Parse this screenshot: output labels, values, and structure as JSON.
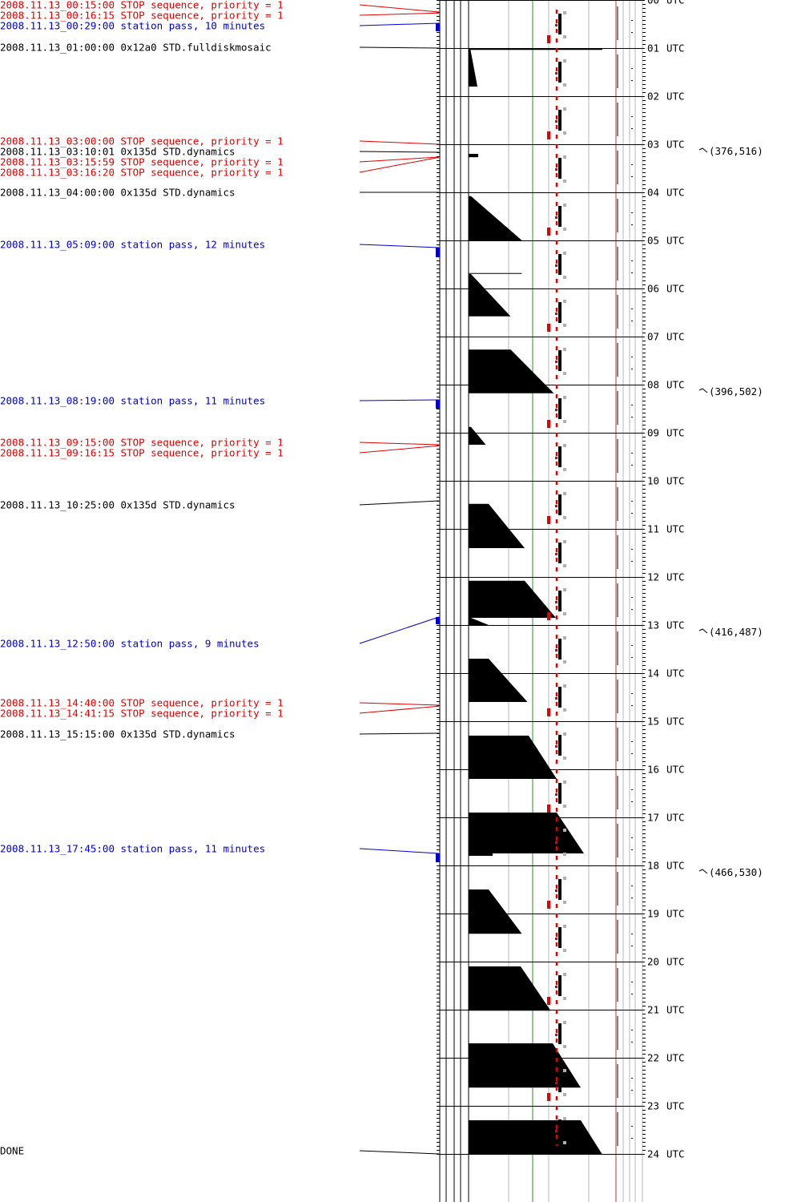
{
  "chart_data": {
    "type": "timeline",
    "title": "",
    "x_unit": "",
    "y_unit": "UTC hour",
    "hour_range": [
      0,
      24
    ],
    "hour_suffix": "UTC",
    "hour_ticks": [
      "00",
      "01",
      "02",
      "03",
      "04",
      "05",
      "06",
      "07",
      "08",
      "09",
      "10",
      "11",
      "12",
      "13",
      "14",
      "15",
      "16",
      "17",
      "18",
      "19",
      "20",
      "21",
      "22",
      "23",
      "24"
    ],
    "colors": {
      "stop_sequence": "#e00000",
      "station_pass": "#0000cc",
      "command": "#000000",
      "done": "#000000",
      "grid_gray": "#b8b8b8",
      "grid_green": "#2e8b2e",
      "limit_red": "#c03030",
      "fill": "#000000",
      "gray_mark": "#b0b0b0"
    },
    "events": [
      {
        "hour": 0.25,
        "type": "stop_sequence",
        "label": "2008.11.13_00:15:00 STOP sequence, priority = 1"
      },
      {
        "hour": 0.2708,
        "type": "stop_sequence",
        "label": "2008.11.13_00:16:15 STOP sequence, priority = 1"
      },
      {
        "hour": 0.4833,
        "type": "station_pass",
        "label": "2008.11.13_00:29:00 station pass, 10 minutes",
        "duration_min": 10
      },
      {
        "hour": 1.0,
        "type": "command",
        "label": "2008.11.13_01:00:00 0x12a0 STD.fulldiskmosaic"
      },
      {
        "hour": 3.0,
        "type": "stop_sequence",
        "label": "2008.11.13_03:00:00 STOP sequence, priority = 1"
      },
      {
        "hour": 3.1669,
        "type": "command",
        "label": "2008.11.13_03:10:01 0x135d STD.dynamics"
      },
      {
        "hour": 3.2664,
        "type": "stop_sequence",
        "label": "2008.11.13_03:15:59 STOP sequence, priority = 1"
      },
      {
        "hour": 3.2722,
        "type": "stop_sequence",
        "label": "2008.11.13_03:16:20 STOP sequence, priority = 1"
      },
      {
        "hour": 4.0,
        "type": "command",
        "label": "2008.11.13_04:00:00 0x135d STD.dynamics"
      },
      {
        "hour": 5.15,
        "type": "station_pass",
        "label": "2008.11.13_05:09:00 station pass, 12 minutes",
        "duration_min": 12
      },
      {
        "hour": 8.3167,
        "type": "station_pass",
        "label": "2008.11.13_08:19:00 station pass, 11 minutes",
        "duration_min": 11
      },
      {
        "hour": 9.25,
        "type": "stop_sequence",
        "label": "2008.11.13_09:15:00 STOP sequence, priority = 1"
      },
      {
        "hour": 9.2708,
        "type": "stop_sequence",
        "label": "2008.11.13_09:16:15 STOP sequence, priority = 1"
      },
      {
        "hour": 10.4167,
        "type": "command",
        "label": "2008.11.13_10:25:00 0x135d STD.dynamics"
      },
      {
        "hour": 12.8333,
        "type": "station_pass",
        "label": "2008.11.13_12:50:00 station pass, 9 minutes",
        "duration_min": 9
      },
      {
        "hour": 14.6667,
        "type": "stop_sequence",
        "label": "2008.11.13_14:40:00 STOP sequence, priority = 1"
      },
      {
        "hour": 14.6875,
        "type": "stop_sequence",
        "label": "2008.11.13_14:41:15 STOP sequence, priority = 1"
      },
      {
        "hour": 15.25,
        "type": "command",
        "label": "2008.11.13_15:15:00 0x135d STD.dynamics"
      },
      {
        "hour": 17.75,
        "type": "station_pass",
        "label": "2008.11.13_17:45:00 station pass, 11 minutes",
        "duration_min": 11
      },
      {
        "hour": 24.0,
        "type": "done",
        "label": "DONE"
      }
    ],
    "label_hours": [
      0.1,
      0.317,
      0.533,
      0.983,
      2.933,
      3.15,
      3.367,
      3.583,
      4.0,
      5.083,
      8.333,
      9.2,
      9.417,
      10.5,
      13.383,
      14.617,
      14.833,
      15.267,
      17.65,
      23.933
    ],
    "coordinate_annotations": [
      {
        "hour": 3.1,
        "text": "(376,516)"
      },
      {
        "hour": 8.1,
        "text": "(396,502)"
      },
      {
        "hour": 13.1,
        "text": "(416,487)"
      },
      {
        "hour": 18.1,
        "text": "(466,530)"
      }
    ],
    "activity_blocks": [
      {
        "start": 1.0,
        "end": 1.8,
        "level": 0.22,
        "shape": "taper"
      },
      {
        "start": 3.2,
        "end": 3.27,
        "level": 0.24,
        "shape": "rect"
      },
      {
        "start": 4.08,
        "end": 5.0,
        "level": 1.33,
        "shape": "wedge"
      },
      {
        "start": 5.68,
        "end": 5.68,
        "level": 1.33,
        "shape": "line"
      },
      {
        "start": 5.7,
        "end": 6.58,
        "level": 1.05,
        "shape": "wedge"
      },
      {
        "start": 7.27,
        "end": 8.18,
        "level": 2.13,
        "shape": "trap",
        "flat": 1.05
      },
      {
        "start": 8.88,
        "end": 9.25,
        "level": 0.43,
        "shape": "wedge"
      },
      {
        "start": 10.48,
        "end": 11.4,
        "level": 1.4,
        "shape": "trap",
        "flat": 0.5
      },
      {
        "start": 12.08,
        "end": 12.85,
        "level": 2.18,
        "shape": "trap",
        "flat": 1.4
      },
      {
        "start": 12.85,
        "end": 13.0,
        "level": 0.5,
        "shape": "wedge"
      },
      {
        "start": 13.7,
        "end": 14.6,
        "level": 1.47,
        "shape": "trap",
        "flat": 0.5
      },
      {
        "start": 15.3,
        "end": 16.2,
        "level": 2.2,
        "shape": "trap",
        "flat": 1.5
      },
      {
        "start": 16.9,
        "end": 17.75,
        "level": 2.88,
        "shape": "trap",
        "flat": 2.2
      },
      {
        "start": 17.75,
        "end": 17.8,
        "level": 0.6,
        "shape": "rect"
      },
      {
        "start": 18.5,
        "end": 19.42,
        "level": 1.33,
        "shape": "trap",
        "flat": 0.5
      },
      {
        "start": 20.1,
        "end": 21.02,
        "level": 2.05,
        "shape": "trap",
        "flat": 1.3
      },
      {
        "start": 21.7,
        "end": 22.62,
        "level": 2.8,
        "shape": "trap",
        "flat": 2.1
      },
      {
        "start": 23.3,
        "end": 24.0,
        "level": 3.33,
        "shape": "trap",
        "flat": 2.8
      }
    ]
  }
}
